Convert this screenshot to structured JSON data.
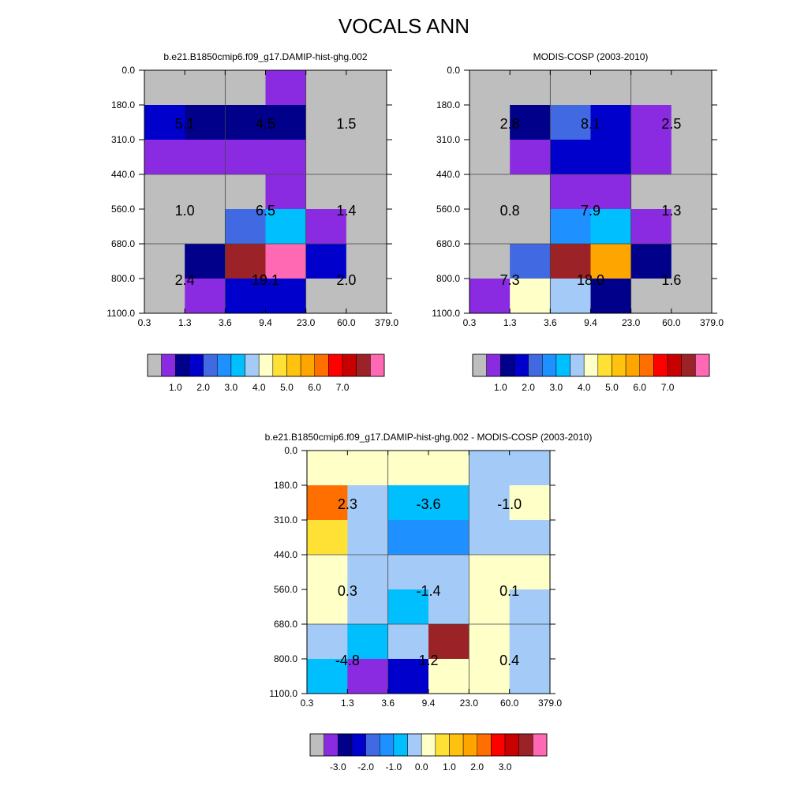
{
  "title": "VOCALS ANN",
  "chart_data": [
    {
      "type": "heatmap",
      "title": "b.e21.B1850cmip6.f09_g17.DAMIP-hist-ghg.002",
      "x_ticks": [
        "0.3",
        "1.3",
        "3.6",
        "9.4",
        "23.0",
        "60.0",
        "379.0"
      ],
      "y_ticks": [
        "0.0",
        "180.0",
        "310.0",
        "440.0",
        "560.0",
        "680.0",
        "800.0",
        "1100.0"
      ],
      "cells": [
        [
          "#BEBEBE",
          "#BEBEBE",
          "#BEBEBE",
          "#8A2BE2",
          "#BEBEBE",
          "#BEBEBE"
        ],
        [
          "#0000CD",
          "#00008B",
          "#00008B",
          "#00008B",
          "#BEBEBE",
          "#BEBEBE"
        ],
        [
          "#8A2BE2",
          "#8A2BE2",
          "#8A2BE2",
          "#8A2BE2",
          "#BEBEBE",
          "#BEBEBE"
        ],
        [
          "#BEBEBE",
          "#BEBEBE",
          "#BEBEBE",
          "#8A2BE2",
          "#BEBEBE",
          "#BEBEBE"
        ],
        [
          "#BEBEBE",
          "#BEBEBE",
          "#4169E1",
          "#00BFFF",
          "#8A2BE2",
          "#BEBEBE"
        ],
        [
          "#BEBEBE",
          "#00008B",
          "#9B2226",
          "#FF69B4",
          "#0000CD",
          "#BEBEBE"
        ],
        [
          "#BEBEBE",
          "#8A2BE2",
          "#0000CD",
          "#0000CD",
          "#BEBEBE",
          "#BEBEBE"
        ]
      ],
      "block_values": [
        [
          "5.1",
          "4.5",
          "1.5"
        ],
        [
          "1.0",
          "6.5",
          "1.4"
        ],
        [
          "2.4",
          "19.1",
          "2.0"
        ]
      ],
      "colorbar": {
        "colors": [
          "#BEBEBE",
          "#8A2BE2",
          "#00008B",
          "#0000CD",
          "#4169E1",
          "#1E90FF",
          "#00BFFF",
          "#A4CBF7",
          "#FFFFC8",
          "#FFE135",
          "#FFC20E",
          "#FFA500",
          "#FF6F00",
          "#FF0000",
          "#C80000",
          "#9B2226",
          "#FF69B4"
        ],
        "labels": [
          "1.0",
          "2.0",
          "3.0",
          "4.0",
          "5.0",
          "6.0",
          "7.0"
        ]
      }
    },
    {
      "type": "heatmap",
      "title": "MODIS-COSP (2003-2010)",
      "x_ticks": [
        "0.3",
        "1.3",
        "3.6",
        "9.4",
        "23.0",
        "60.0",
        "379.0"
      ],
      "y_ticks": [
        "0.0",
        "180.0",
        "310.0",
        "440.0",
        "560.0",
        "680.0",
        "800.0",
        "1100.0"
      ],
      "cells": [
        [
          "#BEBEBE",
          "#BEBEBE",
          "#BEBEBE",
          "#BEBEBE",
          "#BEBEBE",
          "#BEBEBE"
        ],
        [
          "#BEBEBE",
          "#00008B",
          "#4169E1",
          "#0000CD",
          "#8A2BE2",
          "#BEBEBE"
        ],
        [
          "#BEBEBE",
          "#8A2BE2",
          "#0000CD",
          "#0000CD",
          "#8A2BE2",
          "#BEBEBE"
        ],
        [
          "#BEBEBE",
          "#BEBEBE",
          "#8A2BE2",
          "#8A2BE2",
          "#BEBEBE",
          "#BEBEBE"
        ],
        [
          "#BEBEBE",
          "#BEBEBE",
          "#1E90FF",
          "#00BFFF",
          "#8A2BE2",
          "#BEBEBE"
        ],
        [
          "#BEBEBE",
          "#4169E1",
          "#9B2226",
          "#FFA500",
          "#00008B",
          "#BEBEBE"
        ],
        [
          "#8A2BE2",
          "#FFFFC8",
          "#A4CBF7",
          "#00008B",
          "#BEBEBE",
          "#BEBEBE"
        ]
      ],
      "block_values": [
        [
          "2.8",
          "8.1",
          "2.5"
        ],
        [
          "0.8",
          "7.9",
          "1.3"
        ],
        [
          "7.3",
          "18.0",
          "1.6"
        ]
      ],
      "colorbar": {
        "colors": [
          "#BEBEBE",
          "#8A2BE2",
          "#00008B",
          "#0000CD",
          "#4169E1",
          "#1E90FF",
          "#00BFFF",
          "#A4CBF7",
          "#FFFFC8",
          "#FFE135",
          "#FFC20E",
          "#FFA500",
          "#FF6F00",
          "#FF0000",
          "#C80000",
          "#9B2226",
          "#FF69B4"
        ],
        "labels": [
          "1.0",
          "2.0",
          "3.0",
          "4.0",
          "5.0",
          "6.0",
          "7.0"
        ]
      }
    },
    {
      "type": "heatmap",
      "title": "b.e21.B1850cmip6.f09_g17.DAMIP-hist-ghg.002 - MODIS-COSP (2003-2010)",
      "x_ticks": [
        "0.3",
        "1.3",
        "3.6",
        "9.4",
        "23.0",
        "60.0",
        "379.0"
      ],
      "y_ticks": [
        "0.0",
        "180.0",
        "310.0",
        "440.0",
        "560.0",
        "680.0",
        "800.0",
        "1100.0"
      ],
      "cells": [
        [
          "#FFFFC8",
          "#FFFFC8",
          "#FFFFC8",
          "#FFFFC8",
          "#A4CBF7",
          "#A4CBF7"
        ],
        [
          "#FF6F00",
          "#A4CBF7",
          "#00BFFF",
          "#00BFFF",
          "#A4CBF7",
          "#FFFFC8"
        ],
        [
          "#FFE135",
          "#A4CBF7",
          "#1E90FF",
          "#1E90FF",
          "#A4CBF7",
          "#A4CBF7"
        ],
        [
          "#FFFFC8",
          "#A4CBF7",
          "#A4CBF7",
          "#A4CBF7",
          "#FFFFC8",
          "#FFFFC8"
        ],
        [
          "#FFFFC8",
          "#A4CBF7",
          "#00BFFF",
          "#A4CBF7",
          "#FFFFC8",
          "#A4CBF7"
        ],
        [
          "#A4CBF7",
          "#00BFFF",
          "#A4CBF7",
          "#9B2226",
          "#FFFFC8",
          "#A4CBF7"
        ],
        [
          "#00BFFF",
          "#8A2BE2",
          "#0000CD",
          "#FFFFC8",
          "#FFFFC8",
          "#A4CBF7"
        ]
      ],
      "block_values": [
        [
          "2.3",
          "-3.6",
          "-1.0"
        ],
        [
          "0.3",
          "-1.4",
          "0.1"
        ],
        [
          "-4.8",
          "1.2",
          "0.4"
        ]
      ],
      "colorbar": {
        "colors": [
          "#BEBEBE",
          "#8A2BE2",
          "#00008B",
          "#0000CD",
          "#4169E1",
          "#1E90FF",
          "#00BFFF",
          "#A4CBF7",
          "#FFFFC8",
          "#FFE135",
          "#FFC20E",
          "#FFA500",
          "#FF6F00",
          "#FF0000",
          "#C80000",
          "#9B2226",
          "#FF69B4"
        ],
        "labels": [
          "-3.0",
          "-2.0",
          "-1.0",
          "0.0",
          "1.0",
          "2.0",
          "3.0"
        ]
      }
    }
  ]
}
